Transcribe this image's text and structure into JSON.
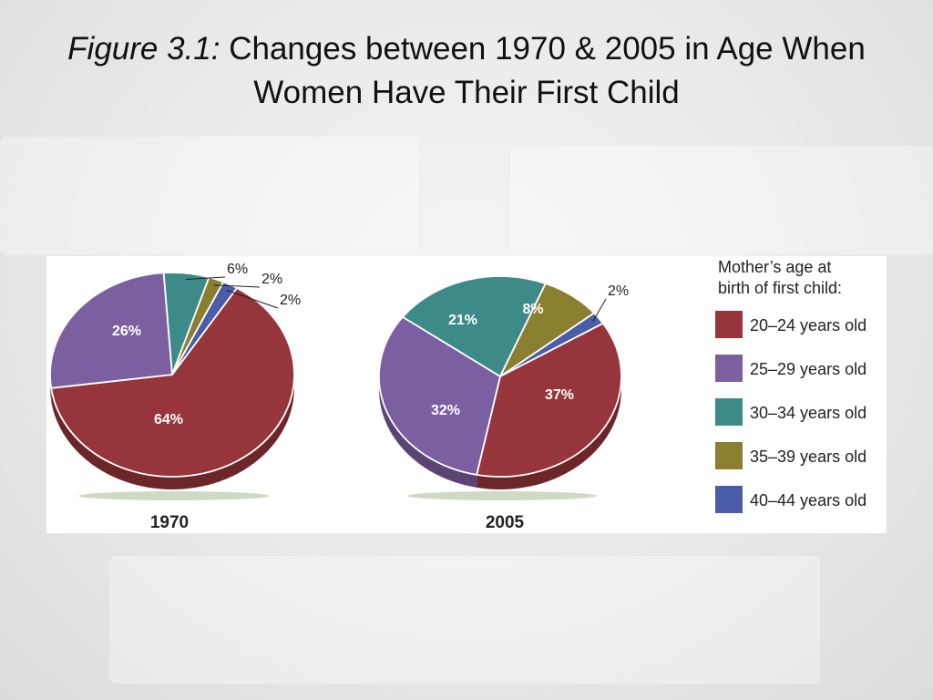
{
  "title": {
    "prefix": "Figure 3.1:",
    "line1": "Changes between 1970 & 2005 in Age When",
    "line2": "Women Have Their First Child"
  },
  "colors": {
    "20-24": "#96353b",
    "25-29": "#7b5fa1",
    "30-34": "#3d8b88",
    "35-39": "#8a7e2f",
    "40-44": "#4a5da6"
  },
  "chart_data": [
    {
      "type": "pie",
      "title": "1970",
      "categories": [
        "20–24 years old",
        "25–29 years old",
        "30–34 years old",
        "35–39 years old",
        "40–44 years old"
      ],
      "values": [
        64,
        26,
        6,
        2,
        2
      ],
      "labels": [
        "64%",
        "26%",
        "6%",
        "2%",
        "2%"
      ]
    },
    {
      "type": "pie",
      "title": "2005",
      "categories": [
        "20–24 years old",
        "25–29 years old",
        "30–34 years old",
        "35–39 years old",
        "40–44 years old"
      ],
      "values": [
        37,
        32,
        21,
        8,
        2
      ],
      "labels": [
        "37%",
        "32%",
        "21%",
        "8%",
        "2%"
      ]
    }
  ],
  "legend": {
    "title_line1": "Mother’s age at",
    "title_line2": "birth of first child:",
    "items": [
      "20–24 years old",
      "25–29 years old",
      "30–34 years old",
      "35–39 years old",
      "40–44 years old"
    ]
  }
}
